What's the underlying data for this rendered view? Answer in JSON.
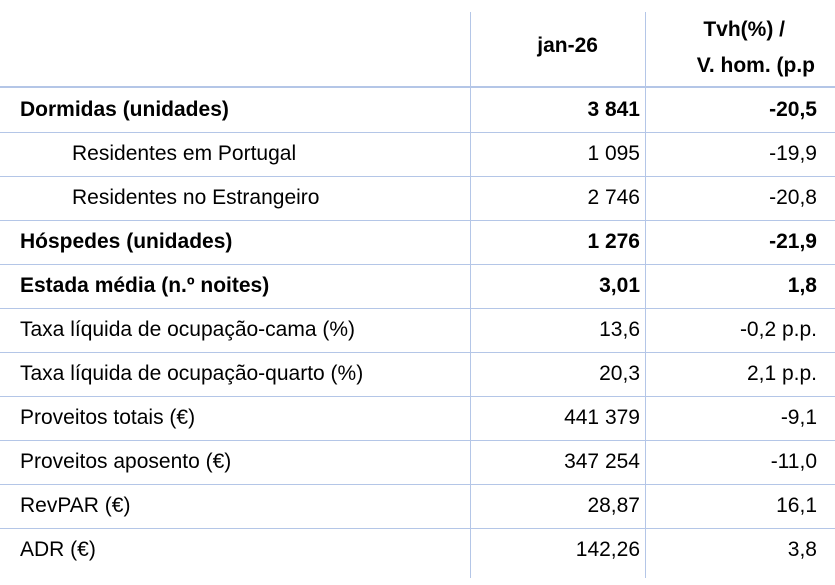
{
  "header": {
    "period": "jan-26",
    "change": [
      "Tvh(%) /",
      "V. hom. (p.p"
    ]
  },
  "rows": [
    {
      "label": "Dormidas (unidades)",
      "value": "3 841",
      "change": "-20,5",
      "bold": true
    },
    {
      "label": "Residentes em Portugal",
      "value": "1 095",
      "change": "-19,9",
      "indent": true
    },
    {
      "label": "Residentes no Estrangeiro",
      "value": "2 746",
      "change": "-20,8",
      "indent": true
    },
    {
      "label": "Hóspedes (unidades)",
      "value": "1 276",
      "change": "-21,9",
      "bold": true
    },
    {
      "label": "Estada média (n.º noites)",
      "value": "3,01",
      "change": "1,8",
      "bold": true
    },
    {
      "label": "Taxa líquida de ocupação-cama (%)",
      "value": "13,6",
      "change": "-0,2 p.p."
    },
    {
      "label": "Taxa líquida de ocupação-quarto (%)",
      "value": "20,3",
      "change": "2,1 p.p."
    },
    {
      "label": "Proveitos totais (€)",
      "value": "441 379",
      "change": "-9,1"
    },
    {
      "label": "Proveitos aposento (€)",
      "value": "347 254",
      "change": "-11,0"
    },
    {
      "label": "RevPAR (€)",
      "value": "28,87",
      "change": "16,1"
    },
    {
      "label": "ADR (€)",
      "value": "142,26",
      "change": "3,8"
    }
  ]
}
